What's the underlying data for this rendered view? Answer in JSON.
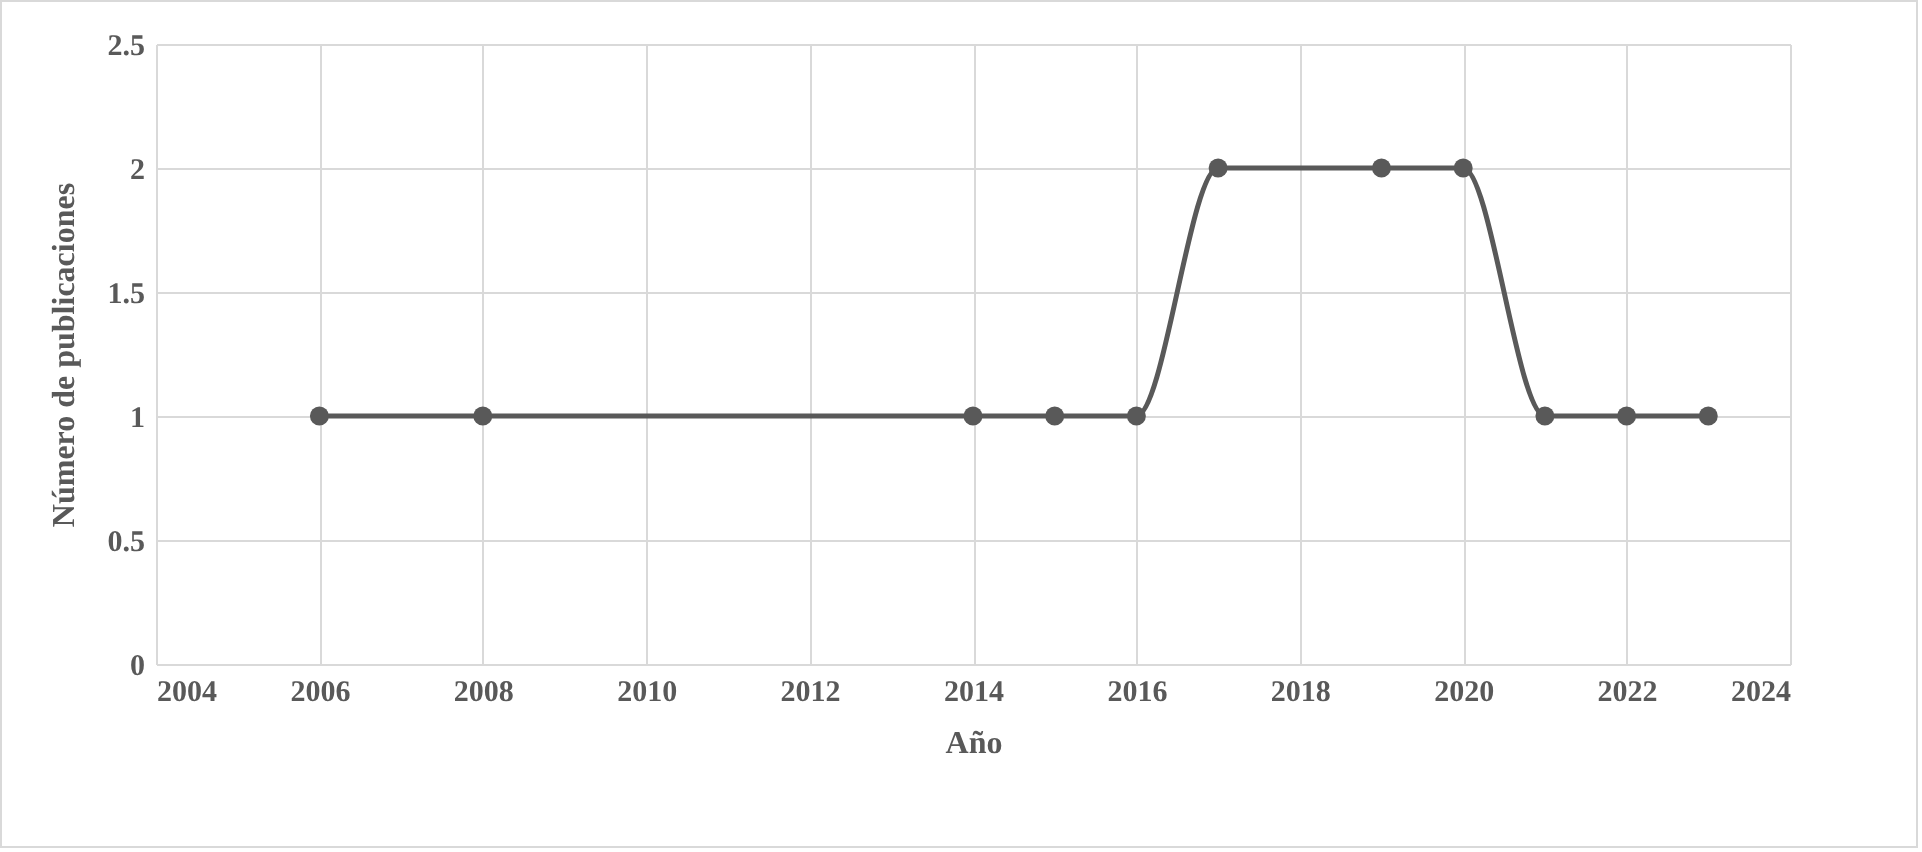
{
  "chart_data": {
    "type": "line",
    "xlabel": "Año",
    "ylabel": "Número de publicaciones",
    "x": [
      2006,
      2008,
      2014,
      2015,
      2016,
      2017,
      2019,
      2020,
      2021,
      2022,
      2023
    ],
    "series": [
      {
        "color": "#595959",
        "values": [
          1,
          1,
          1,
          1,
          1,
          2,
          2,
          2,
          1,
          1,
          1
        ]
      }
    ],
    "xlim": [
      2004,
      2024
    ],
    "xticks": [
      2004,
      2006,
      2008,
      2010,
      2012,
      2014,
      2016,
      2018,
      2020,
      2022,
      2024
    ],
    "ylim": [
      0,
      2.5
    ],
    "yticks": [
      0,
      0.5,
      1,
      1.5,
      2,
      2.5
    ],
    "grid": true,
    "marker": "circle",
    "line_style": "solid",
    "legend": false
  }
}
